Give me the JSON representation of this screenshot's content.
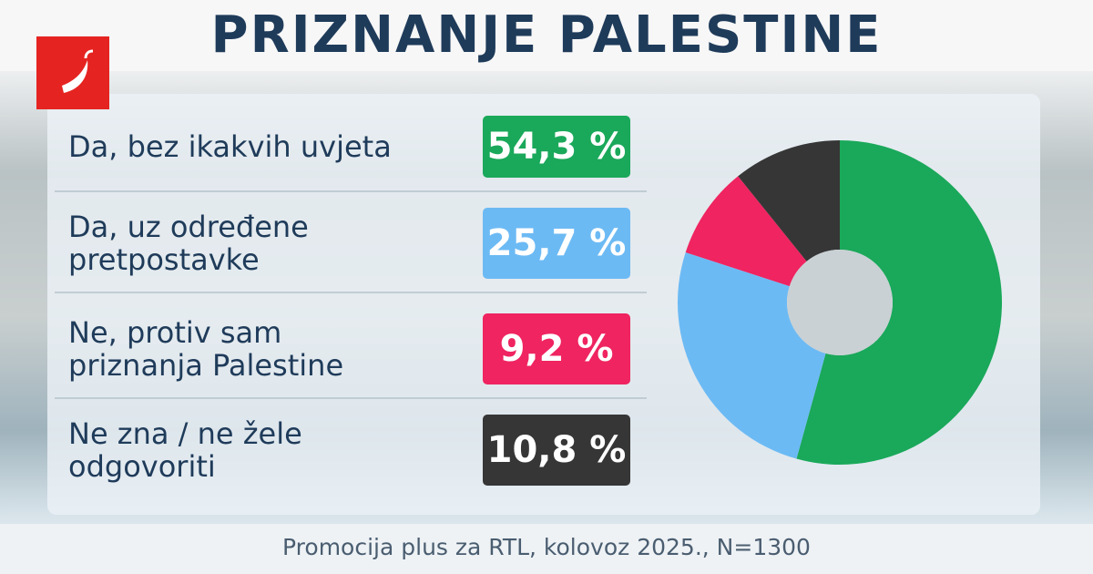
{
  "chart_data": {
    "type": "pie",
    "title": "PRIZNANJE PALESTINE",
    "source": "Promocija plus za RTL, kolovoz 2025., N=1300",
    "categories": [
      "Da, bez ikakvih uvjeta",
      "Da, uz određene\npretpostavke",
      "Ne, protiv sam\npriznanja Palestine",
      "Ne zna / ne žele\nodgovoriti"
    ],
    "values": [
      54.3,
      25.7,
      9.2,
      10.8
    ],
    "value_labels": [
      "54,3 %",
      "25,7 %",
      "9,2 %",
      "10,8 %"
    ],
    "colors": [
      "#1aa85a",
      "#6cbaf4",
      "#ef2460",
      "#363636"
    ],
    "donut": true
  }
}
